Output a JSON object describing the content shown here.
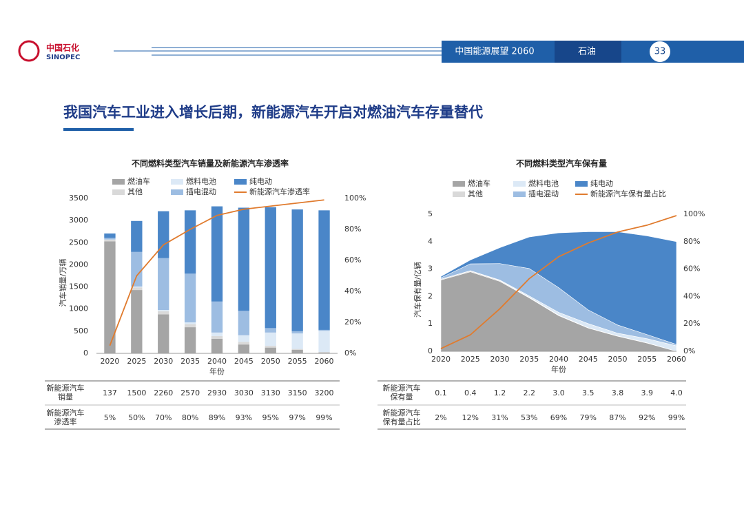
{
  "header": {
    "logo_cn": "中国石化",
    "logo_en": "SINOPEC",
    "report": "中国能源展望 2060",
    "section": "石油",
    "page": "33"
  },
  "title": "我国汽车工业进入增长后期，新能源汽车开启对燃油汽车存量替代",
  "chart_data": [
    {
      "type": "bar",
      "stacked": true,
      "title": "不同燃料类型汽车销量及新能源汽车渗透率",
      "y_label": "汽车销量/万辆",
      "x_label": "年份",
      "categories": [
        "2020",
        "2025",
        "2030",
        "2035",
        "2040",
        "2045",
        "2050",
        "2055",
        "2060"
      ],
      "ylim": [
        0,
        3500
      ],
      "yticks": [
        0,
        500,
        1000,
        1500,
        2000,
        2500,
        3000,
        3500
      ],
      "y2lim": [
        0,
        100
      ],
      "y2ticks": [
        {
          "value": 0,
          "label": "0%"
        },
        {
          "value": 20,
          "label": "20%"
        },
        {
          "value": 40,
          "label": "40%"
        },
        {
          "value": 60,
          "label": "60%"
        },
        {
          "value": 80,
          "label": "80%"
        },
        {
          "value": 100,
          "label": "100%"
        }
      ],
      "series": [
        {
          "name": "燃油车",
          "color": "#a5a5a5",
          "values": [
            2530,
            1430,
            880,
            590,
            330,
            200,
            130,
            80,
            20
          ]
        },
        {
          "name": "其他",
          "color": "#d9d9d9",
          "values": [
            40,
            60,
            70,
            70,
            60,
            60,
            40,
            20,
            10
          ]
        },
        {
          "name": "燃料电池",
          "color": "#dce9f6",
          "values": [
            2,
            20,
            30,
            40,
            80,
            150,
            300,
            350,
            480
          ]
        },
        {
          "name": "插电混动",
          "color": "#9dbde2",
          "values": [
            35,
            780,
            1170,
            1100,
            700,
            550,
            100,
            50,
            20
          ]
        },
        {
          "name": "纯电动",
          "color": "#4a86c8",
          "values": [
            100,
            700,
            1060,
            1430,
            2150,
            2330,
            2730,
            2750,
            2700
          ]
        },
        {
          "name": "新能源汽车渗透率",
          "color": "#e07b2e",
          "type": "line",
          "axis": "y2",
          "values": [
            5,
            50,
            70,
            80,
            89,
            93,
            95,
            97,
            99
          ]
        }
      ]
    },
    {
      "type": "area",
      "stacked": true,
      "title": "不同燃料类型汽车保有量",
      "y_label": "汽车保有量/亿辆",
      "x_label": "年份",
      "x": [
        2020,
        2025,
        2030,
        2035,
        2040,
        2045,
        2050,
        2055,
        2060
      ],
      "xlim": [
        2020,
        2060
      ],
      "xticks": [
        2020,
        2025,
        2030,
        2035,
        2040,
        2045,
        2050,
        2055,
        2060
      ],
      "ylim": [
        0,
        5
      ],
      "yticks": [
        0,
        1,
        2,
        3,
        4,
        5
      ],
      "y2lim": [
        0,
        100
      ],
      "y2ticks": [
        {
          "value": 0,
          "label": "0%"
        },
        {
          "value": 20,
          "label": "20%"
        },
        {
          "value": 40,
          "label": "40%"
        },
        {
          "value": 60,
          "label": "60%"
        },
        {
          "value": 80,
          "label": "80%"
        },
        {
          "value": 100,
          "label": "100%"
        }
      ],
      "series": [
        {
          "name": "燃油车",
          "color": "#a5a5a5",
          "values": [
            2.6,
            2.9,
            2.55,
            1.95,
            1.3,
            0.85,
            0.55,
            0.3,
            0
          ]
        },
        {
          "name": "其他",
          "color": "#d9d9d9",
          "values": [
            0.03,
            0.03,
            0.03,
            0.02,
            0.02,
            0.01,
            0.01,
            0.01,
            0
          ]
        },
        {
          "name": "燃料电池",
          "color": "#dce9f6",
          "values": [
            0,
            0.01,
            0.02,
            0.05,
            0.1,
            0.15,
            0.1,
            0.15,
            0.2
          ]
        },
        {
          "name": "插电混动",
          "color": "#9dbde2",
          "values": [
            0.05,
            0.25,
            0.6,
            1.0,
            0.9,
            0.5,
            0.3,
            0.15,
            0.05
          ]
        },
        {
          "name": "纯电动",
          "color": "#4a86c8",
          "values": [
            0.05,
            0.14,
            0.58,
            1.15,
            2.0,
            2.85,
            3.4,
            3.6,
            3.75
          ]
        },
        {
          "name": "新能源汽车保有量占比",
          "color": "#e07b2e",
          "type": "line",
          "axis": "y2",
          "values": [
            2,
            12,
            31,
            53,
            69,
            79,
            87,
            92,
            99
          ]
        }
      ]
    }
  ],
  "tables": [
    {
      "rows": [
        {
          "label": "新能源汽车销量",
          "cells": [
            "137",
            "1500",
            "2260",
            "2570",
            "2930",
            "3030",
            "3130",
            "3150",
            "3200"
          ]
        },
        {
          "label": "新能源汽车渗透率",
          "cells": [
            "5%",
            "50%",
            "70%",
            "80%",
            "89%",
            "93%",
            "95%",
            "97%",
            "99%"
          ]
        }
      ]
    },
    {
      "rows": [
        {
          "label": "新能源汽车保有量",
          "cells": [
            "0.1",
            "0.4",
            "1.2",
            "2.2",
            "3.0",
            "3.5",
            "3.8",
            "3.9",
            "4.0"
          ]
        },
        {
          "label": "新能源汽车保有量占比",
          "cells": [
            "2%",
            "12%",
            "31%",
            "53%",
            "69%",
            "79%",
            "87%",
            "92%",
            "99%"
          ]
        }
      ]
    }
  ]
}
